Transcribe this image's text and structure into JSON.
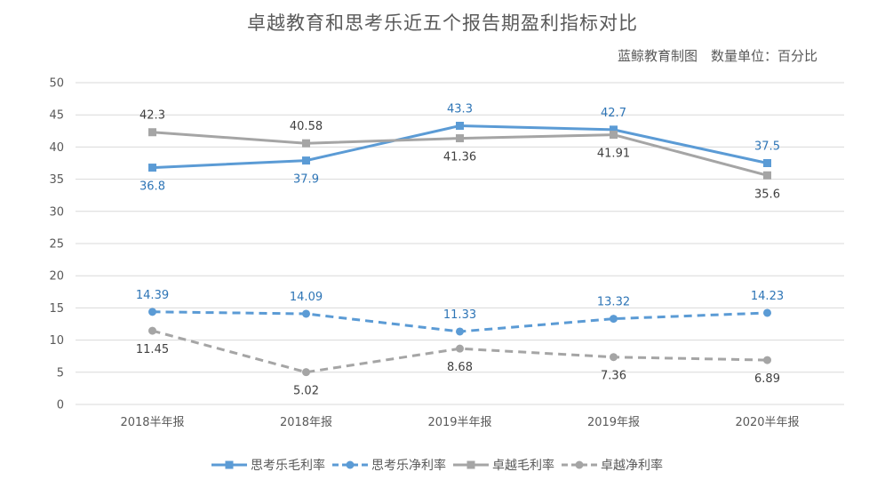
{
  "chart_data": {
    "type": "line",
    "title": "卓越教育和思考乐近五个报告期盈利指标对比",
    "subtitle": "蓝鲸教育制图　数量单位：百分比",
    "categories": [
      "2018半年报",
      "2018年报",
      "2019半年报",
      "2019年报",
      "2020半年报"
    ],
    "ylim": [
      0,
      50
    ],
    "yticks": [
      0,
      5,
      10,
      15,
      20,
      25,
      30,
      35,
      40,
      45,
      50
    ],
    "grid": true,
    "legend_position": "bottom",
    "series": [
      {
        "name": "思考乐毛利率",
        "values": [
          36.8,
          37.9,
          43.3,
          42.7,
          37.5
        ],
        "color": "#5B9BD5",
        "dash": "solid",
        "marker": "square",
        "label_color": "#2E75B6",
        "label_pos": [
          "below",
          "below",
          "above",
          "above",
          "above"
        ]
      },
      {
        "name": "思考乐净利率",
        "values": [
          14.39,
          14.09,
          11.33,
          13.32,
          14.23
        ],
        "color": "#5B9BD5",
        "dash": "dash",
        "marker": "circle",
        "label_color": "#2E75B6",
        "label_pos": [
          "above",
          "above",
          "above",
          "above",
          "above"
        ]
      },
      {
        "name": "卓越毛利率",
        "values": [
          42.3,
          40.58,
          41.36,
          41.91,
          35.6
        ],
        "color": "#A5A5A5",
        "dash": "solid",
        "marker": "square",
        "label_color": "#404040",
        "label_pos": [
          "above",
          "above",
          "below",
          "below",
          "below"
        ]
      },
      {
        "name": "卓越净利率",
        "values": [
          11.45,
          5.02,
          8.68,
          7.36,
          6.89
        ],
        "color": "#A5A5A5",
        "dash": "dash",
        "marker": "circle",
        "label_color": "#404040",
        "label_pos": [
          "below",
          "below",
          "below",
          "below",
          "below"
        ]
      }
    ],
    "value_labels": [
      [
        "36.8",
        "37.9",
        "43.3",
        "42.7",
        "37.5"
      ],
      [
        "14.39",
        "14.09",
        "11.33",
        "13.32",
        "14.23"
      ],
      [
        "42.3",
        "40.58",
        "41.36",
        "41.91",
        "35.6"
      ],
      [
        "11.45",
        "5.02",
        "8.68",
        "7.36",
        "6.89"
      ]
    ]
  }
}
